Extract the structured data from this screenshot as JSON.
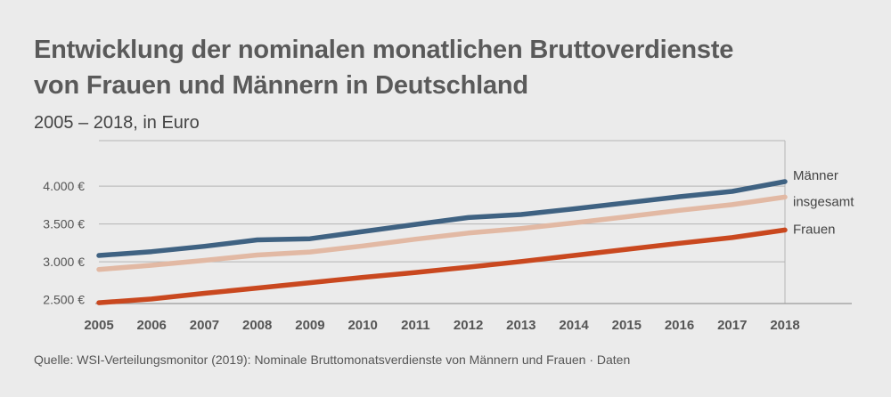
{
  "title": {
    "line1": "Entwicklung der nominalen monatlichen Bruttoverdienste",
    "line2": "von Frauen und Männern in Deutschland"
  },
  "subtitle": "2005 – 2018, in Euro",
  "source": "Quelle: WSI-Verteilungsmonitor (2019): Nominale Bruttomonatsverdienste von Männern und Frauen · Daten",
  "chart_data": {
    "type": "line",
    "title": "Entwicklung der nominalen monatlichen Bruttoverdienste von Frauen und Männern in Deutschland",
    "subtitle": "2005 – 2018, in Euro",
    "xlabel": "",
    "ylabel": "",
    "x": [
      "2005",
      "2006",
      "2007",
      "2008",
      "2009",
      "2010",
      "2011",
      "2012",
      "2013",
      "2014",
      "2015",
      "2016",
      "2017",
      "2018"
    ],
    "ylim": [
      2450,
      4600
    ],
    "yticks": [
      2500,
      3000,
      3500,
      4000
    ],
    "ytick_labels": [
      "2.500 €",
      "3.000 €",
      "3.500 €",
      "4.000 €"
    ],
    "grid": true,
    "legend": "direct labels at right end of lines",
    "series": [
      {
        "name": "Männer",
        "color": "#3f6282",
        "values": [
          3085,
          3135,
          3205,
          3290,
          3305,
          3400,
          3495,
          3585,
          3625,
          3700,
          3780,
          3860,
          3930,
          4060
        ]
      },
      {
        "name": "insgesamt",
        "color": "#e2b9a4",
        "values": [
          2900,
          2955,
          3020,
          3090,
          3130,
          3210,
          3300,
          3380,
          3440,
          3515,
          3595,
          3680,
          3755,
          3855
        ]
      },
      {
        "name": "Frauen",
        "color": "#c9481f",
        "values": [
          2460,
          2510,
          2585,
          2655,
          2725,
          2795,
          2860,
          2930,
          3005,
          3085,
          3165,
          3245,
          3320,
          3420
        ]
      }
    ]
  }
}
